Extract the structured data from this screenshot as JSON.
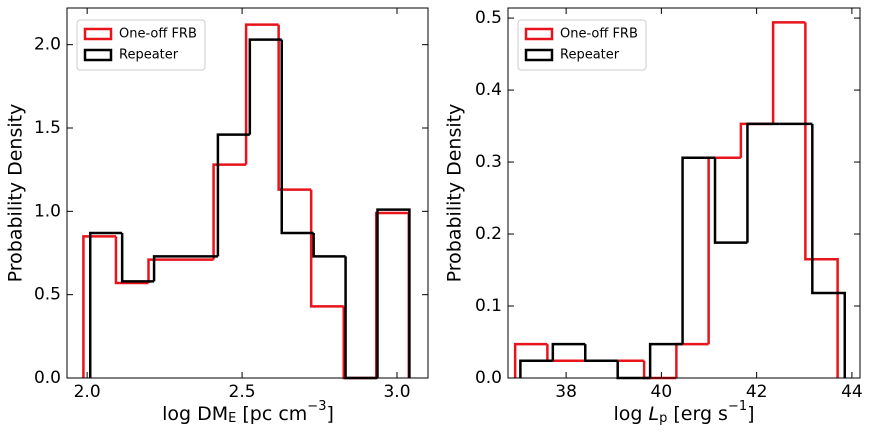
{
  "chart_data": [
    {
      "type": "histogram",
      "xlabel": [
        "log DM",
        "E",
        " [pc cm",
        "−3",
        "]"
      ],
      "ylabel": "Probability Density",
      "xlim": [
        1.935,
        3.1
      ],
      "ylim": [
        0,
        2.22
      ],
      "xticks": [
        {
          "value": 2.0,
          "label": "2.0"
        },
        2.5,
        {
          "value": 3.0,
          "label": "3.0"
        }
      ],
      "yticks": [
        {
          "value": 0,
          "label": "0.0"
        },
        0.5,
        {
          "value": 1,
          "label": "1.0"
        },
        1.5,
        {
          "value": 2,
          "label": "2.0"
        }
      ],
      "legend": "upper left",
      "series": [
        {
          "name": "One-off FRB",
          "color": "#e8141b",
          "bins": [
            1.988,
            2.093,
            2.198,
            2.303,
            2.408,
            2.513,
            2.618,
            2.723,
            2.828,
            2.933,
            3.038
          ],
          "values": [
            0.85,
            0.57,
            0.71,
            0.71,
            1.28,
            2.12,
            1.13,
            0.43,
            0,
            0.99
          ]
        },
        {
          "name": "Repeater",
          "color": "#000000",
          "bins": [
            2.01,
            2.113,
            2.216,
            2.319,
            2.422,
            2.525,
            2.628,
            2.731,
            2.834,
            2.937,
            3.04
          ],
          "values": [
            0.87,
            0.58,
            0.73,
            0.73,
            1.46,
            2.03,
            0.87,
            0.73,
            0,
            1.01
          ]
        }
      ]
    },
    {
      "type": "histogram",
      "xlabel": [
        "log ",
        "L",
        "p",
        " [erg s",
        "−1",
        "]"
      ],
      "ylabel": "Probability Density",
      "xlim": [
        36.78,
        44.17
      ],
      "ylim": [
        0,
        0.514
      ],
      "xticks": [
        38,
        40,
        42,
        44
      ],
      "yticks": [
        {
          "value": 0,
          "label": "0.0"
        },
        0.1,
        0.2,
        0.3,
        0.4,
        0.5
      ],
      "legend": "upper left",
      "series": [
        {
          "name": "One-off FRB",
          "color": "#e8141b",
          "bins": [
            36.93,
            37.607,
            38.284,
            38.961,
            39.638,
            40.315,
            40.992,
            41.669,
            42.346,
            43.023,
            43.7
          ],
          "values": [
            0.047,
            0.024,
            0.024,
            0.024,
            0,
            0.047,
            0.306,
            0.353,
            0.494,
            0.165
          ]
        },
        {
          "name": "Repeater",
          "color": "#000000",
          "bins": [
            37.04,
            37.721,
            38.402,
            39.083,
            39.764,
            40.445,
            41.126,
            41.807,
            42.488,
            43.169,
            43.85
          ],
          "values": [
            0.024,
            0.047,
            0.024,
            0,
            0.047,
            0.306,
            0.188,
            0.353,
            0.353,
            0.118
          ]
        }
      ]
    }
  ]
}
